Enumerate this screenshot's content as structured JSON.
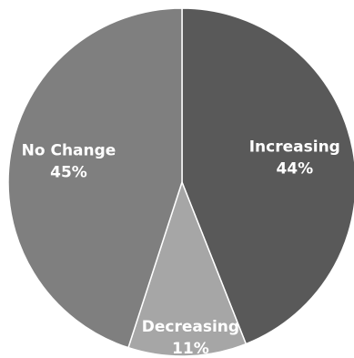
{
  "chart_data": {
    "type": "pie",
    "title": "",
    "slices": [
      {
        "label": "Increasing",
        "value": 44,
        "value_label": "44%",
        "color": "#595959"
      },
      {
        "label": "Decreasing",
        "value": 11,
        "value_label": "11%",
        "color": "#a6a6a6"
      },
      {
        "label": "No Change",
        "value": 45,
        "value_label": "45%",
        "color": "#7f7f7f"
      }
    ],
    "start": "12 o'clock",
    "direction": "clockwise",
    "legend": "none",
    "data_labels": "inside slices"
  }
}
